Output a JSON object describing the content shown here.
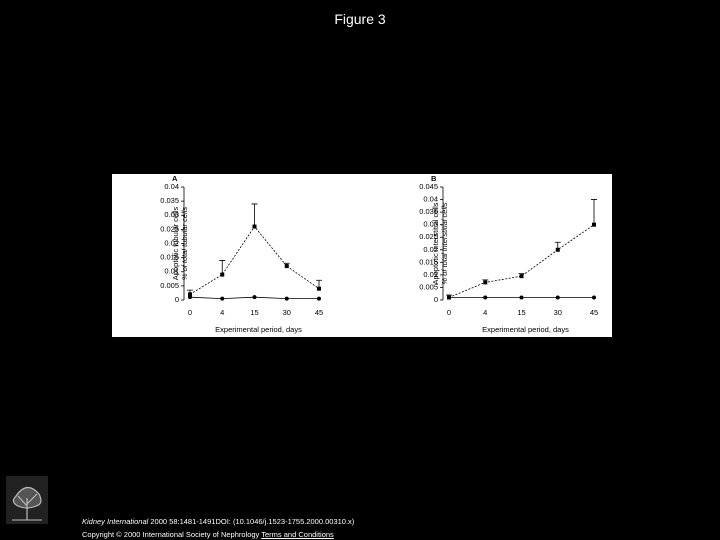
{
  "title": "Figure 3",
  "chart_data": [
    {
      "type": "line",
      "panel": "A",
      "y_label": [
        "Apoptotic tubular cells",
        "% of total tubular cells"
      ],
      "x_label": "Experimental period, days",
      "categories": [
        "0",
        "4",
        "15",
        "30",
        "45"
      ],
      "series": [
        {
          "color": "#000000",
          "marker": "square",
          "dashed": true,
          "values": [
            0.002,
            0.009,
            0.026,
            0.012,
            0.004
          ],
          "errors": [
            0.0015,
            0.005,
            0.008,
            0.001,
            0.003
          ]
        },
        {
          "color": "#000000",
          "marker": "circle",
          "dashed": false,
          "values": [
            0.001,
            0.0005,
            0.001,
            0.0005,
            0.0005
          ]
        }
      ],
      "ylim": [
        0,
        0.04
      ],
      "yticks": [
        0,
        0.005,
        0.01,
        0.015,
        0.02,
        0.025,
        0.03,
        0.035,
        0.04
      ]
    },
    {
      "type": "line",
      "panel": "B",
      "y_label": [
        "Apoptotic interstitial cells",
        "% of total interstitial cells"
      ],
      "x_label": "Experimental period, days",
      "categories": [
        "0",
        "4",
        "15",
        "30",
        "45"
      ],
      "series": [
        {
          "color": "#000000",
          "marker": "square",
          "dashed": true,
          "values": [
            0.001,
            0.007,
            0.0095,
            0.02,
            0.03
          ],
          "errors": [
            0.001,
            0.001,
            0.001,
            0.003,
            0.01
          ]
        },
        {
          "color": "#000000",
          "marker": "circle",
          "dashed": false,
          "values": [
            0.001,
            0.001,
            0.001,
            0.001,
            0.001
          ]
        }
      ],
      "ylim": [
        0,
        0.045
      ],
      "yticks": [
        0,
        0.005,
        0.01,
        0.015,
        0.02,
        0.025,
        0.03,
        0.035,
        0.04,
        0.045
      ]
    }
  ],
  "logo": "ELSEVIER",
  "footer": {
    "journal": "Kidney International",
    "citation": " 2000 58:1481-1491DOI: (10.1046/j.1523-1755.2000.00310.x)",
    "copyright": "Copyright © 2000 International Society of Nephrology",
    "link": "Terms and Conditions"
  }
}
